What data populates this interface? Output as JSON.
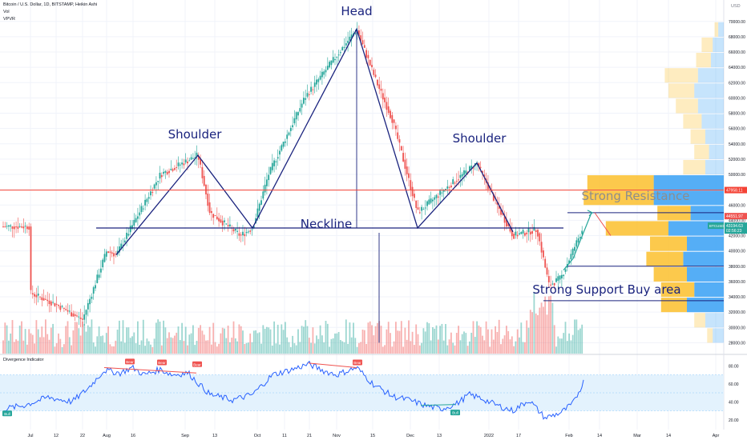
{
  "header": {
    "symbol_line": "Bitcoin / U.S. Dollar, 1D, BITSTAMP, Heikin Ashi",
    "vol_label": "Vol",
    "vpvr_label": "VPVR",
    "currency": "USD"
  },
  "annotations": {
    "head": "Head",
    "left_shoulder": "Shoulder",
    "right_shoulder": "Shoulder",
    "neckline": "Neckline",
    "resistance": "Strong Resistance",
    "support": "Strong Support Buy area"
  },
  "indicator": {
    "title": "Divergence Indicator",
    "y_ticks": [
      "80.00",
      "60.00",
      "40.00",
      "20.00"
    ],
    "signals": [
      "Bull",
      "Bear",
      "Bear",
      "Bear",
      "Bear",
      "Bull"
    ]
  },
  "price_tags": {
    "resistance": "47958.11",
    "upper": "44551.97",
    "current_symbol": "BTCUSD",
    "current": "43194.63",
    "countdown": "02:56:23"
  },
  "colors": {
    "bull": "#26a69a",
    "bear": "#ef5350",
    "pattern": "#1a237e",
    "resistance_line": "#f44336",
    "rsi": "#2962ff",
    "band": "#e3f2fd",
    "vp_up": "#fbc02d",
    "vp_down": "#42a5f5"
  },
  "chart_data": {
    "type": "candlestick",
    "title": "Bitcoin / U.S. Dollar, 1D, BITSTAMP, Heikin Ashi",
    "y_axis": {
      "ticks": [
        28000,
        30000,
        32000,
        34000,
        36000,
        38000,
        40000,
        42000,
        44000,
        46000,
        48000,
        50000,
        52000,
        54000,
        56000,
        58000,
        60000,
        62000,
        64000,
        66000,
        68000,
        70000
      ],
      "range": [
        27000,
        70500
      ]
    },
    "x_axis": {
      "labels": [
        "Jul",
        "12",
        "22",
        "Aug",
        "16",
        "Sep",
        "13",
        "Oct",
        "11",
        "21",
        "Nov",
        "15",
        "Dec",
        "13",
        "2022",
        "17",
        "Feb",
        "14",
        "Mar",
        "14",
        "Apr"
      ]
    },
    "close_path": [
      [
        "Jul",
        34500
      ],
      [
        "12",
        33000
      ],
      [
        "22",
        31000
      ],
      [
        "Aug",
        40000
      ],
      [
        "16",
        46000
      ],
      [
        "Sep",
        49000
      ],
      [
        "13",
        46000
      ],
      [
        "Oct",
        44000
      ],
      [
        "11",
        56000
      ],
      [
        "21",
        63000
      ],
      [
        "Nov",
        62000
      ],
      [
        "15",
        65000
      ],
      [
        "Dec",
        49000
      ],
      [
        "13",
        48000
      ],
      [
        "2022",
        46000
      ],
      [
        "17",
        37000
      ],
      [
        "Feb",
        38000
      ],
      [
        "Feb",
        43194
      ]
    ],
    "pattern_points": {
      "left_shoulder_start": 39500,
      "left_shoulder": 52500,
      "left_trough": 43000,
      "head": 69000,
      "right_trough": 43000,
      "right_shoulder": 51500,
      "neckline": 43000,
      "projection": 45000
    },
    "levels": {
      "resistance": 47958.11,
      "neckline": 43000,
      "support": 38000,
      "support_buy_area": 33500
    },
    "volume_profile": [
      {
        "price": 68000,
        "up": 0.02,
        "down": 0.03
      },
      {
        "price": 66000,
        "up": 0.06,
        "down": 0.06
      },
      {
        "price": 64000,
        "up": 0.08,
        "down": 0.07
      },
      {
        "price": 62000,
        "up": 0.18,
        "down": 0.14
      },
      {
        "price": 60000,
        "up": 0.14,
        "down": 0.16
      },
      {
        "price": 58000,
        "up": 0.12,
        "down": 0.14
      },
      {
        "price": 56000,
        "up": 0.1,
        "down": 0.12
      },
      {
        "price": 54000,
        "up": 0.08,
        "down": 0.1
      },
      {
        "price": 52000,
        "up": 0.08,
        "down": 0.08
      },
      {
        "price": 50000,
        "up": 0.12,
        "down": 0.1
      },
      {
        "price": 48000,
        "up": 0.36,
        "down": 0.38
      },
      {
        "price": 46000,
        "up": 0.38,
        "down": 0.38
      },
      {
        "price": 44000,
        "up": 0.18,
        "down": 0.18
      },
      {
        "price": 42000,
        "up": 0.34,
        "down": 0.3
      },
      {
        "price": 40000,
        "up": 0.2,
        "down": 0.2
      },
      {
        "price": 38000,
        "up": 0.2,
        "down": 0.22
      },
      {
        "price": 36000,
        "up": 0.18,
        "down": 0.2
      },
      {
        "price": 34000,
        "up": 0.18,
        "down": 0.16
      },
      {
        "price": 32000,
        "up": 0.14,
        "down": 0.2
      },
      {
        "price": 30000,
        "up": 0.06,
        "down": 0.1
      },
      {
        "price": 28000,
        "up": 0.03,
        "down": 0.06
      }
    ],
    "grid": true
  }
}
